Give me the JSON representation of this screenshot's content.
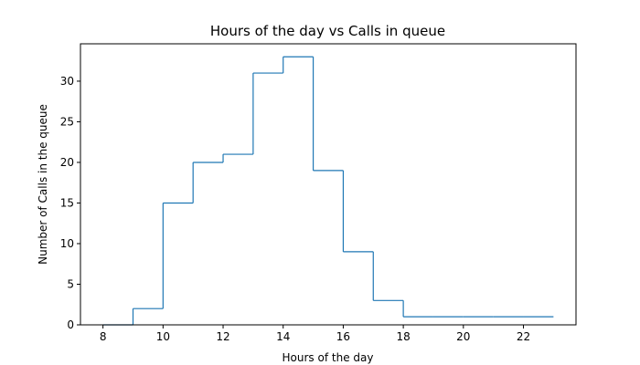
{
  "chart_data": {
    "type": "line",
    "drawstyle": "steps-post",
    "title": "Hours of the day vs Calls in queue",
    "xlabel": "Hours of the day",
    "ylabel": "Number of Calls in the queue",
    "xlim": [
      7.25,
      23.75
    ],
    "ylim": [
      0,
      34.6
    ],
    "xticks": [
      8,
      10,
      12,
      14,
      16,
      18,
      20,
      22
    ],
    "yticks": [
      0,
      5,
      10,
      15,
      20,
      25,
      30
    ],
    "grid": false,
    "legend": "none",
    "series": [
      {
        "color": "#1f77b4",
        "x": [
          8,
          9,
          10,
          11,
          12,
          13,
          14,
          15,
          16,
          17,
          18,
          19,
          20,
          21,
          22,
          23
        ],
        "y": [
          0,
          2,
          15,
          20,
          21,
          31,
          33,
          19,
          9,
          3,
          1,
          1,
          1,
          1,
          1,
          1
        ]
      }
    ]
  }
}
